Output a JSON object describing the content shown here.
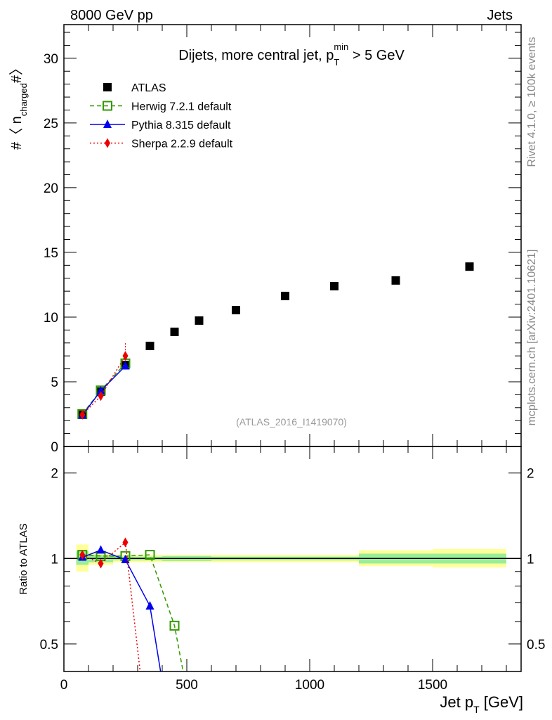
{
  "header": {
    "left": "8000 GeV pp",
    "right": "Jets"
  },
  "side_text": {
    "top": "Rivet 4.1.0, ≥ 100k events",
    "bottom": "mcplots.cern.ch [arXiv:2401.10621]"
  },
  "chart_data": [
    {
      "type": "scatter",
      "title": "Dijets, more central jet, p_T^min > 5 GeV",
      "title_parts": {
        "main": "Dijets, more central jet, p",
        "sub": "T",
        "sup": "min",
        "tail": " > 5 GeV"
      },
      "ylabel": "#〈 n_charged #〉",
      "ylabel_parts": {
        "pre": "#〈 n",
        "sub": "charged",
        "post": "#〉"
      },
      "watermark": "(ATLAS_2016_I1419070)",
      "xlim": [
        0,
        1860
      ],
      "ylim": [
        0,
        32.6
      ],
      "yticks": [
        0,
        5,
        10,
        15,
        20,
        25,
        30
      ],
      "legend_position": "top-left",
      "series": [
        {
          "name": "ATLAS",
          "color": "#000000",
          "marker": "square",
          "x": [
            75,
            150,
            250,
            350,
            450,
            550,
            700,
            900,
            1100,
            1350,
            1650
          ],
          "y": [
            2.45,
            4.24,
            6.3,
            7.77,
            8.86,
            9.73,
            10.54,
            11.63,
            12.39,
            12.83,
            13.9
          ]
        },
        {
          "name": "Herwig 7.2.1 default",
          "color": "#339900",
          "marker": "open-square",
          "line": "dashed",
          "x": [
            75,
            150,
            250
          ],
          "y": [
            2.5,
            4.33,
            6.42
          ]
        },
        {
          "name": "Pythia 8.315 default",
          "color": "#0000ee",
          "marker": "triangle",
          "line": "solid",
          "x": [
            75,
            150,
            250
          ],
          "y": [
            2.42,
            4.3,
            6.22
          ]
        },
        {
          "name": "Sherpa 2.2.9 default",
          "color": "#ee0000",
          "marker": "diamond",
          "line": "dotted",
          "x": [
            75,
            150,
            250
          ],
          "y": [
            2.45,
            3.9,
            7.0
          ],
          "yerr_up": [
            0.1,
            0.15,
            1.0
          ]
        }
      ]
    },
    {
      "type": "line",
      "ylabel": "Ratio to ATLAS",
      "xlabel": "Jet p_T [GeV]",
      "xlabel_parts": {
        "pre": "Jet p",
        "sub": "T",
        "post": " [GeV]"
      },
      "yscale": "log",
      "ylim": [
        0.4,
        2.48
      ],
      "yticks": [
        0.5,
        1,
        2
      ],
      "xticks": [
        0,
        500,
        1000,
        1500
      ],
      "bins": [
        50,
        100,
        200,
        300,
        400,
        500,
        600,
        800,
        1000,
        1200,
        1500,
        1800
      ],
      "band_total": [
        [
          0.9,
          1.12
        ],
        [
          0.95,
          1.05
        ],
        [
          0.97,
          1.03
        ],
        [
          0.97,
          1.03
        ],
        [
          0.97,
          1.03
        ],
        [
          0.97,
          1.03
        ],
        [
          0.97,
          1.03
        ],
        [
          0.97,
          1.03
        ],
        [
          0.97,
          1.03
        ],
        [
          0.94,
          1.07
        ],
        [
          0.93,
          1.08
        ]
      ],
      "band_stat": [
        [
          0.95,
          1.06
        ],
        [
          0.97,
          1.03
        ],
        [
          0.985,
          1.015
        ],
        [
          0.985,
          1.015
        ],
        [
          0.98,
          1.02
        ],
        [
          0.98,
          1.02
        ],
        [
          0.985,
          1.015
        ],
        [
          0.985,
          1.015
        ],
        [
          0.985,
          1.015
        ],
        [
          0.96,
          1.04
        ],
        [
          0.96,
          1.04
        ]
      ],
      "series": [
        {
          "name": "Herwig 7.2.1 default",
          "x": [
            75,
            150,
            250,
            350,
            450,
            550
          ],
          "y": [
            1.03,
            1.02,
            1.02,
            1.03,
            0.58,
            0.2
          ]
        },
        {
          "name": "Pythia 8.315 default",
          "x": [
            75,
            150,
            250,
            350,
            450
          ],
          "y": [
            1.01,
            1.07,
            0.99,
            0.68,
            0.2
          ]
        },
        {
          "name": "Sherpa 2.2.9 default",
          "x": [
            75,
            150,
            250,
            350
          ],
          "y": [
            1.03,
            0.96,
            1.14,
            0.2
          ]
        }
      ]
    }
  ]
}
